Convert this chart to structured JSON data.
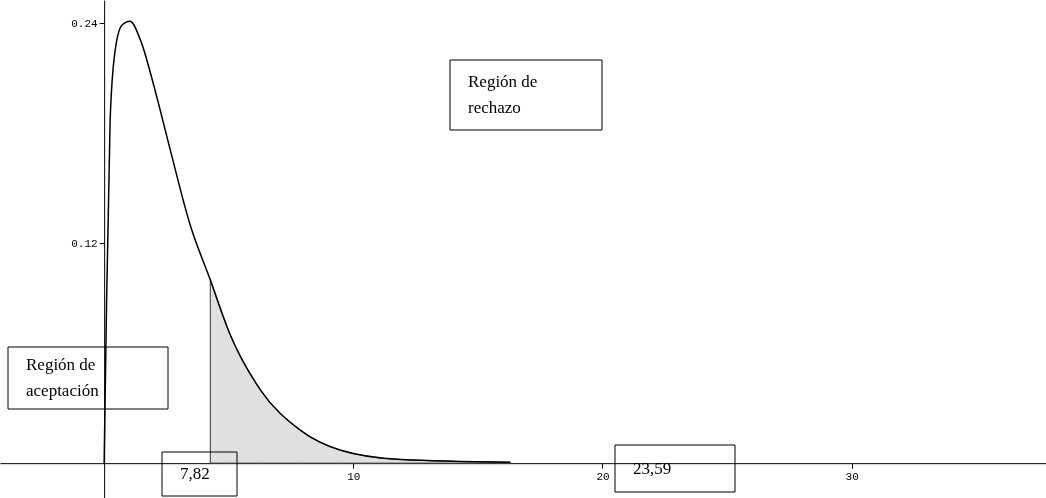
{
  "chart_data": {
    "type": "line",
    "xlim": [
      -4.18,
      37.8
    ],
    "ylim": [
      -0.019,
      0.2526
    ],
    "xticks": [
      10,
      20,
      30
    ],
    "yticks": [
      0.12,
      0.24
    ],
    "grid": false,
    "marker": "none",
    "line_style": "solid",
    "series": [
      {
        "color": "#000000",
        "x": [
          0,
          0.08,
          0.24,
          0.44,
          0.72,
          1.04,
          1.45,
          2.05,
          2.65,
          3.45,
          4.26,
          5.06,
          6.27,
          7.87,
          9.5,
          11.9,
          16.3
        ],
        "values": [
          0,
          0.073,
          0.187,
          0.225,
          0.239,
          0.241,
          0.231,
          0.203,
          0.171,
          0.13,
          0.1,
          0.07,
          0.04,
          0.018,
          0.007,
          0.002,
          0.0005
        ]
      },
      {
        "type": "area",
        "color": "#e0e0e0",
        "x": [
          4.26,
          5.06,
          6.27,
          7.87,
          9.5,
          11.9,
          16.3
        ],
        "values": [
          0.1,
          0.07,
          0.04,
          0.018,
          0.007,
          0.002,
          0.0005
        ]
      }
    ],
    "annotations": [
      "Región de rechazo",
      "Región de aceptación",
      "23,59",
      "7,82"
    ]
  }
}
